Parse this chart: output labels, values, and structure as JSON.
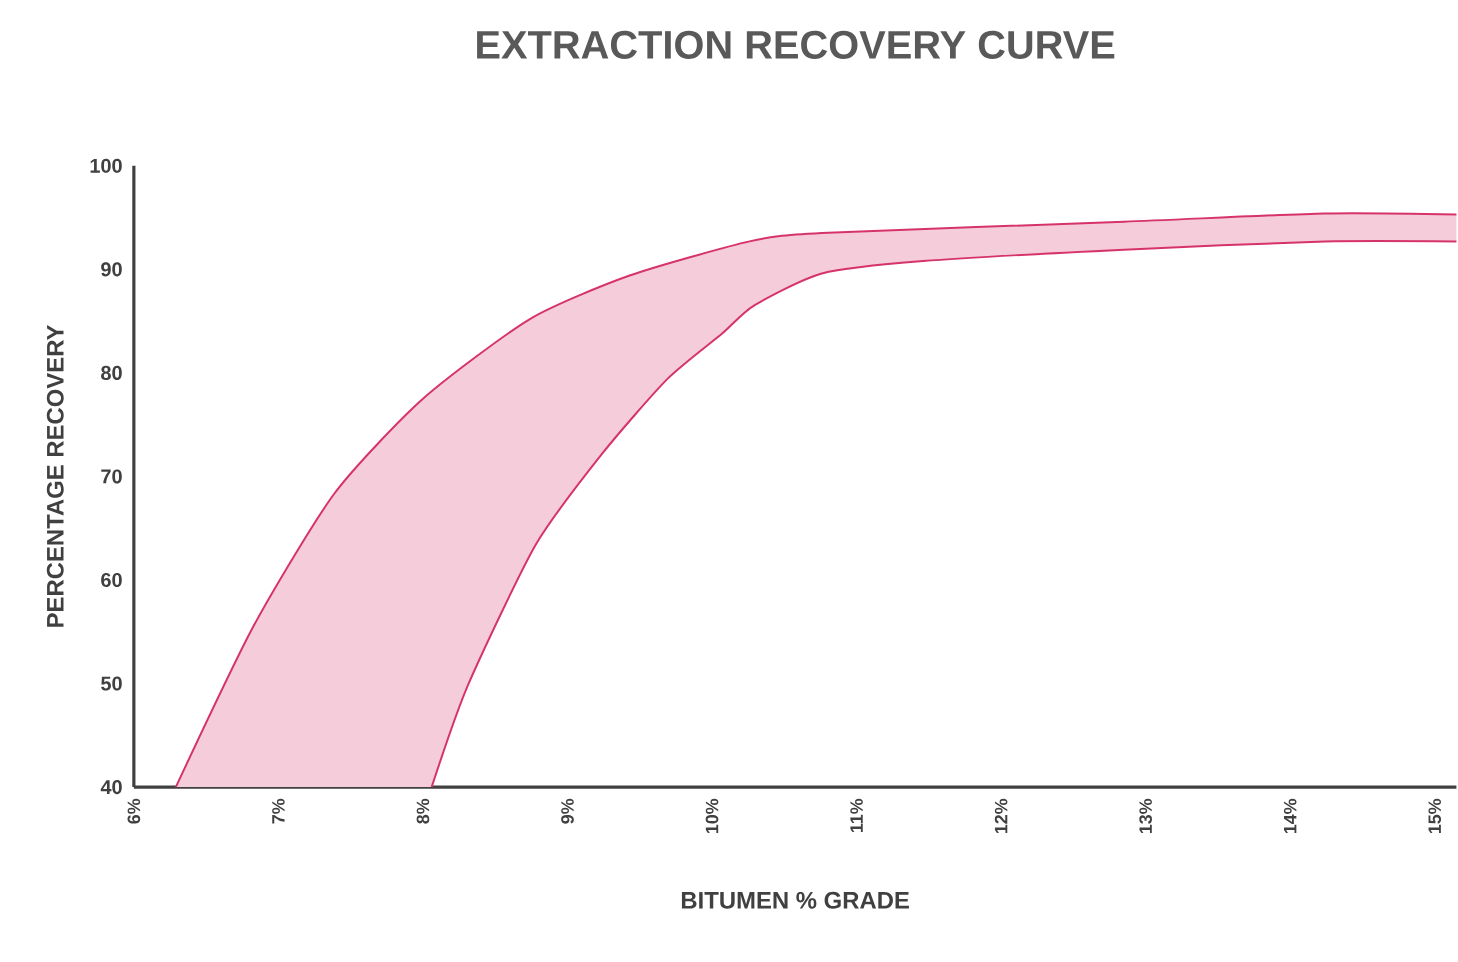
{
  "chart_data": {
    "type": "line",
    "title": "EXTRACTION RECOVERY CURVE",
    "xlabel": "BITUMEN % GRADE",
    "ylabel": "PERCENTAGE RECOVERY",
    "series": [
      {
        "color": "#d6336c",
        "x": [
          6.29,
          6.83,
          7.39,
          8.0,
          8.74,
          9.43,
          10.26,
          10.76,
          12.85,
          14.24,
          15.15
        ],
        "values": [
          40,
          55.6,
          68.4,
          77.5,
          85.2,
          89.4,
          92.7,
          93.5,
          94.6,
          95.4,
          95.3
        ]
      },
      {
        "color": "#d6336c",
        "x": [
          8.06,
          8.31,
          8.78,
          9.24,
          9.69,
          10.07,
          10.29,
          10.76,
          11.46,
          12.85,
          14.24,
          15.15
        ],
        "values": [
          40,
          49.8,
          63.4,
          72.2,
          79.4,
          83.8,
          86.5,
          89.6,
          90.8,
          91.9,
          92.7,
          92.7
        ]
      }
    ],
    "xlim": [
      6,
      15.15
    ],
    "ylim": [
      40,
      100
    ],
    "xticks": [
      {
        "value": 6,
        "label": "6%"
      },
      {
        "value": 7,
        "label": "7%"
      },
      {
        "value": 8,
        "label": "8%"
      },
      {
        "value": 9,
        "label": "9%"
      },
      {
        "value": 10,
        "label": "10%"
      },
      {
        "value": 11,
        "label": "11%"
      },
      {
        "value": 12,
        "label": "12%"
      },
      {
        "value": 13,
        "label": "13%"
      },
      {
        "value": 14,
        "label": "14%"
      },
      {
        "value": 15,
        "label": "15%"
      }
    ],
    "yticks": [
      40,
      50,
      60,
      70,
      80,
      90,
      100
    ],
    "grid": false,
    "marker": "none",
    "line_style": "solid"
  }
}
